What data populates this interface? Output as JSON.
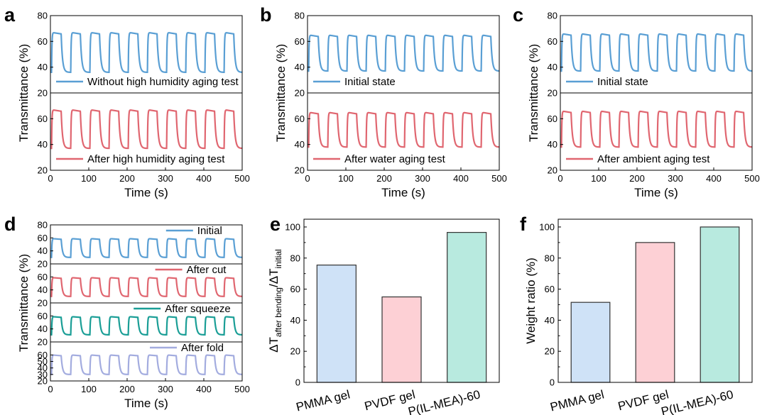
{
  "chart_data": [
    {
      "panel": "a",
      "type": "line",
      "xlabel": "Time (s)",
      "ylabel": "Transmittance (%)",
      "xlim": [
        0,
        500
      ],
      "xticks": [
        "0",
        "100",
        "200",
        "300",
        "400",
        "500"
      ],
      "subplots": [
        {
          "name": "Without high humidity aging test",
          "color": "#5a9fd4",
          "ylim": [
            20,
            80
          ],
          "yticks": [
            "20",
            "40",
            "60",
            "80"
          ],
          "high": 67,
          "low": 36,
          "period": 50,
          "phase": 3
        },
        {
          "name": "After high humidity aging test",
          "color": "#e06670",
          "ylim": [
            20,
            80
          ],
          "yticks": [
            "20",
            "40",
            "60"
          ],
          "high": 67,
          "low": 37,
          "period": 50,
          "phase": 3
        }
      ]
    },
    {
      "panel": "b",
      "type": "line",
      "xlabel": "Time (s)",
      "ylabel": "Transmittance (%)",
      "xlim": [
        0,
        500
      ],
      "xticks": [
        "0",
        "100",
        "200",
        "300",
        "400",
        "500"
      ],
      "subplots": [
        {
          "name": "Initial state",
          "color": "#5a9fd4",
          "ylim": [
            20,
            80
          ],
          "yticks": [
            "20",
            "40",
            "60",
            "80"
          ],
          "high": 65,
          "low": 37,
          "period": 50,
          "phase": 3
        },
        {
          "name": "After water aging test",
          "color": "#e06670",
          "ylim": [
            20,
            80
          ],
          "yticks": [
            "20",
            "40",
            "60"
          ],
          "high": 65,
          "low": 38,
          "period": 50,
          "phase": 3
        }
      ]
    },
    {
      "panel": "c",
      "type": "line",
      "xlabel": "Time (s)",
      "ylabel": "Transmittance (%)",
      "xlim": [
        0,
        500
      ],
      "xticks": [
        "0",
        "100",
        "200",
        "300",
        "400",
        "500"
      ],
      "subplots": [
        {
          "name": "Initial state",
          "color": "#5a9fd4",
          "ylim": [
            20,
            80
          ],
          "yticks": [
            "20",
            "40",
            "60",
            "80"
          ],
          "high": 66,
          "low": 37,
          "period": 50,
          "phase": 3
        },
        {
          "name": "After ambient aging test",
          "color": "#e06670",
          "ylim": [
            20,
            80
          ],
          "yticks": [
            "20",
            "40",
            "60"
          ],
          "high": 66,
          "low": 38,
          "period": 50,
          "phase": 3
        }
      ]
    },
    {
      "panel": "d",
      "type": "line",
      "xlabel": "Time (s)",
      "ylabel": "Transmittance (%)",
      "xlim": [
        0,
        500
      ],
      "xticks": [
        "0",
        "100",
        "200",
        "300",
        "400",
        "500"
      ],
      "subplots": [
        {
          "name": "Initial",
          "color": "#5a9fd4",
          "ylim": [
            20,
            80
          ],
          "yticks": [
            "20",
            "40",
            "60",
            "80"
          ],
          "high": 59,
          "low": 30,
          "period": 50,
          "phase": 3
        },
        {
          "name": "After cut",
          "color": "#e06670",
          "ylim": [
            20,
            80
          ],
          "yticks": [
            "20",
            "40",
            "60"
          ],
          "high": 59,
          "low": 30,
          "period": 50,
          "phase": 3
        },
        {
          "name": "After squeeze",
          "color": "#1a9e96",
          "ylim": [
            20,
            80
          ],
          "yticks": [
            "20",
            "40",
            "60"
          ],
          "high": 59,
          "low": 31,
          "period": 50,
          "phase": 3
        },
        {
          "name": "After fold",
          "color": "#a3acdf",
          "ylim": [
            20,
            80
          ],
          "yticks": [
            "20",
            "30",
            "40",
            "50",
            "60"
          ],
          "high": 60,
          "low": 30,
          "period": 50,
          "phase": 3
        }
      ]
    },
    {
      "panel": "e",
      "type": "bar",
      "ylabel_parts": [
        "ΔT",
        "after bending",
        "/ΔT",
        "initial"
      ],
      "categories": [
        "PMMA gel",
        "PVDF gel",
        "P(IL-MEA)-60"
      ],
      "values": [
        75.5,
        55,
        96.5
      ],
      "colors": [
        "#cfe2f7",
        "#fdd0d5",
        "#b8eadf"
      ],
      "ylim": [
        0,
        105
      ],
      "yticks": [
        "0",
        "20",
        "40",
        "60",
        "80",
        "100"
      ]
    },
    {
      "panel": "f",
      "type": "bar",
      "ylabel": "Weight ratio (%)",
      "categories": [
        "PMMA gel",
        "PVDF gel",
        "P(IL-MEA)-60"
      ],
      "values": [
        51.5,
        90,
        100
      ],
      "colors": [
        "#cfe2f7",
        "#fdd0d5",
        "#b8eadf"
      ],
      "ylim": [
        0,
        105
      ],
      "yticks": [
        "0",
        "20",
        "40",
        "60",
        "80",
        "100"
      ]
    }
  ]
}
